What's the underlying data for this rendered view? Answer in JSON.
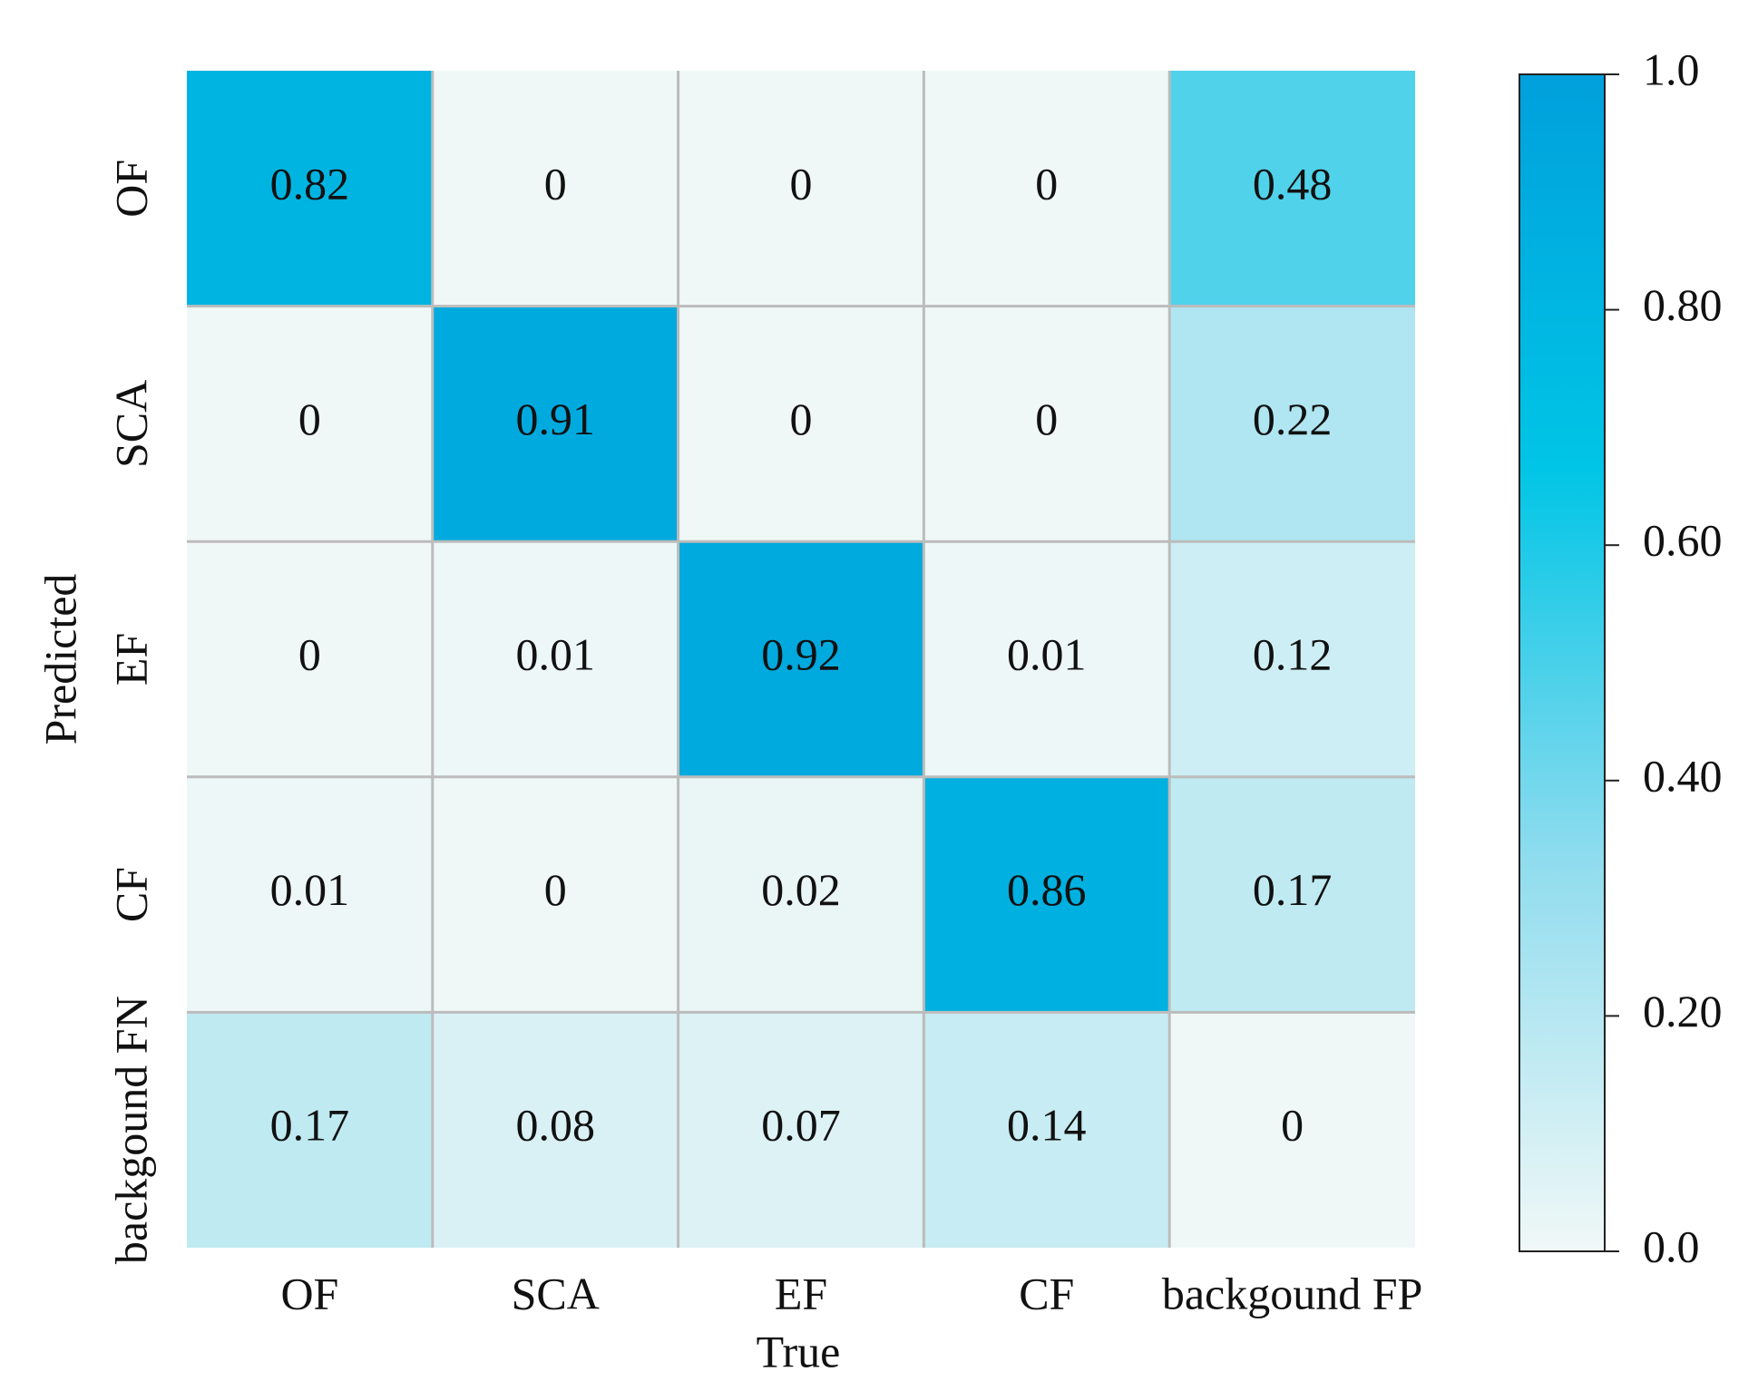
{
  "chart_data": {
    "type": "heatmap",
    "x_label": "True",
    "y_label": "Predicted",
    "x_categories": [
      "OF",
      "SCA",
      "EF",
      "CF",
      "backgound FP"
    ],
    "y_categories": [
      "OF",
      "SCA",
      "EF",
      "CF",
      "backgound FN"
    ],
    "values": [
      [
        0.82,
        0,
        0,
        0,
        0.48
      ],
      [
        0,
        0.91,
        0,
        0,
        0.22
      ],
      [
        0,
        0.01,
        0.92,
        0.01,
        0.12
      ],
      [
        0.01,
        0,
        0.02,
        0.86,
        0.17
      ],
      [
        0.17,
        0.08,
        0.07,
        0.14,
        0
      ]
    ],
    "colormap": [
      "#f0f8f7",
      "#8fdcee",
      "#00c5e6",
      "#00a0dc"
    ],
    "grid_color": "#bcbcbc",
    "colorbar_lim": [
      0,
      1
    ],
    "colorbar_ticks": [
      {
        "value": 0,
        "label": "0.0"
      },
      {
        "value": 0.2,
        "label": "0.20"
      },
      {
        "value": 0.4,
        "label": "0.40"
      },
      {
        "value": 0.6,
        "label": "0.60"
      },
      {
        "value": 0.8,
        "label": "0.80"
      },
      {
        "value": 1,
        "label": "1.0"
      }
    ]
  }
}
